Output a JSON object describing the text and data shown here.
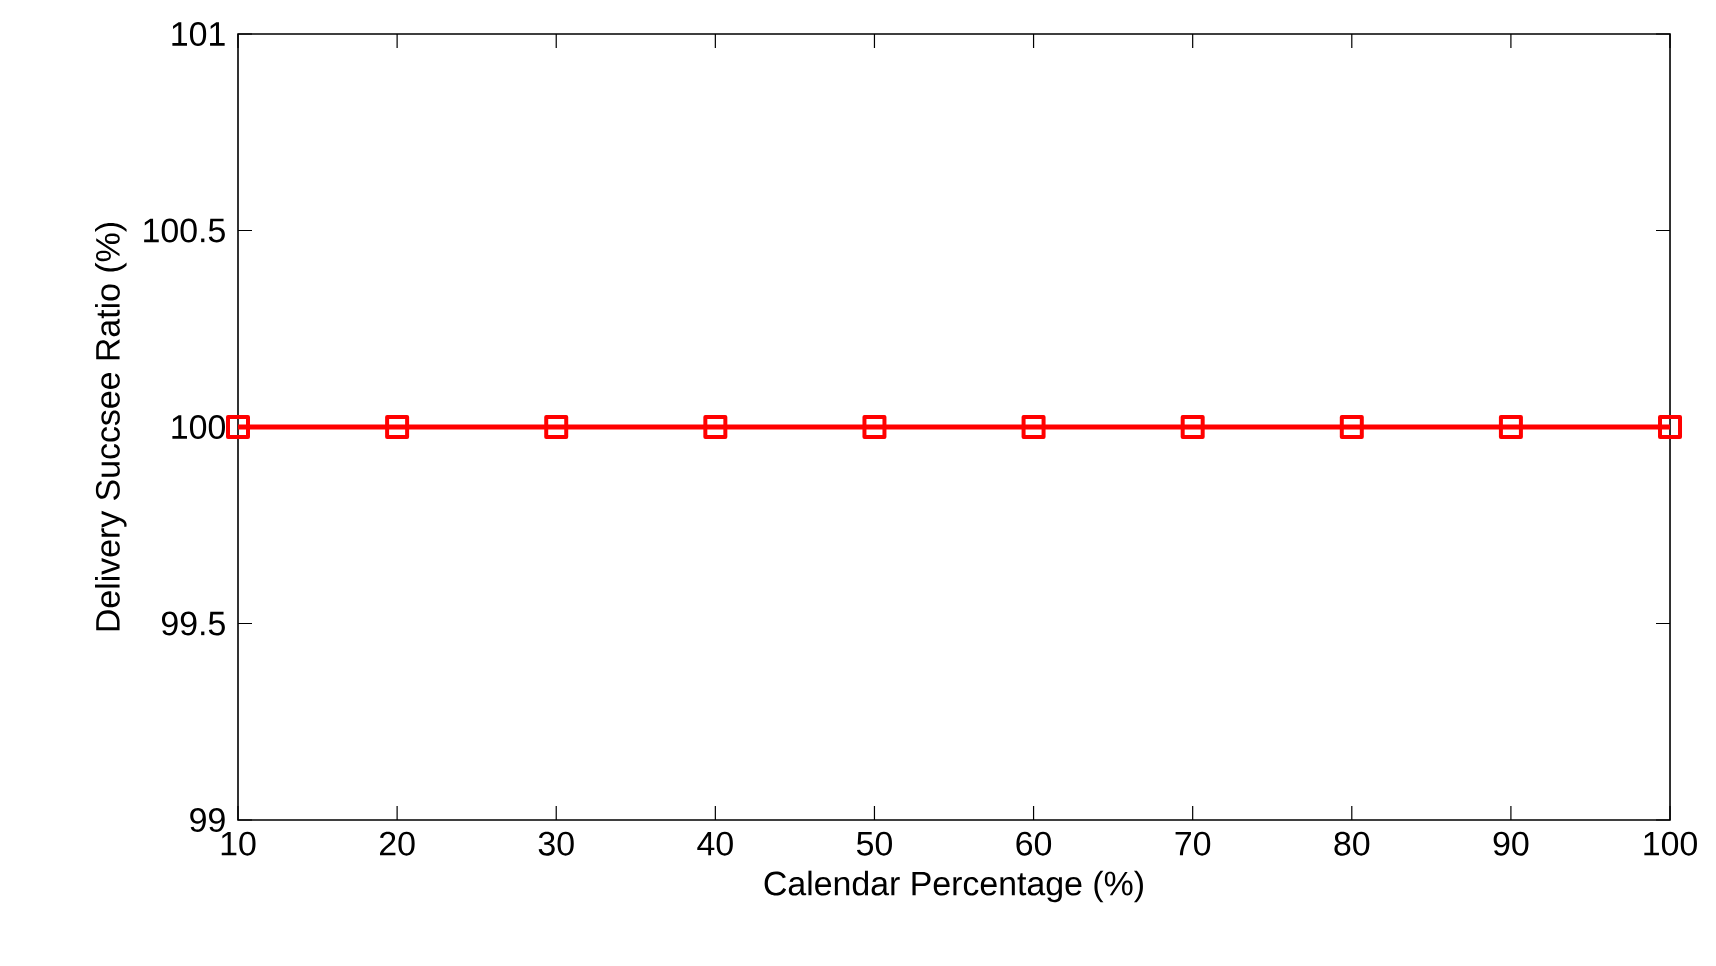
{
  "chart_data": {
    "type": "line",
    "xlabel": "Calendar Percentage (%)",
    "ylabel": "Delivery Succsee Ratio (%)",
    "x": [
      10,
      20,
      30,
      40,
      50,
      60,
      70,
      80,
      90,
      100
    ],
    "series": [
      {
        "color": "#ff0000",
        "values": [
          100,
          100,
          100,
          100,
          100,
          100,
          100,
          100,
          100,
          100
        ]
      }
    ],
    "xlim": [
      10,
      100
    ],
    "ylim": [
      99,
      101
    ],
    "xticks": [
      10,
      20,
      30,
      40,
      50,
      60,
      70,
      80,
      90,
      100
    ],
    "yticks": [
      99,
      99.5,
      100,
      100.5,
      101
    ],
    "marker": "square",
    "line_style": "solid"
  }
}
